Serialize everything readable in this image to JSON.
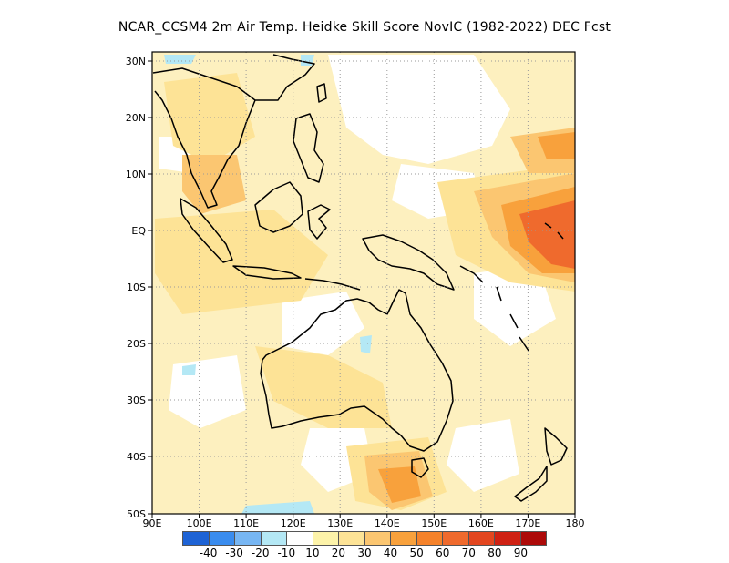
{
  "title": "NCAR_CCSM4  2m Air Temp. Heidke Skill Score NovIC (1982-2022) DEC Fcst",
  "map": {
    "lon_labels": [
      "90E",
      "100E",
      "110E",
      "120E",
      "130E",
      "140E",
      "150E",
      "160E",
      "170E",
      "180"
    ],
    "lat_labels": [
      "30N",
      "20N",
      "10N",
      "EQ",
      "10S",
      "20S",
      "30S",
      "40S",
      "50S"
    ],
    "lon_range": [
      90,
      180
    ],
    "lat_range": [
      -50,
      32
    ],
    "gridlines": "dotted",
    "field_colors": {
      "ocean_base": "#fdf0bf",
      "neutral": "#ffffff",
      "light": "#fde396",
      "moderate": "#fbc671",
      "strong": "#f8a13c",
      "very_strong": "#ef6a2d",
      "negative": "#b4e8f5"
    }
  },
  "colorbar": {
    "colors": [
      "#1e63d5",
      "#3a8cee",
      "#77b6f3",
      "#b4e8f5",
      "#ffffff",
      "#fdf3a9",
      "#fde396",
      "#fbc671",
      "#f8a13c",
      "#f5822a",
      "#ef6a2d",
      "#e3461f",
      "#cf2113",
      "#ad0a09"
    ],
    "labels": [
      "-40",
      "-30",
      "-20",
      "-10",
      "10",
      "20",
      "30",
      "40",
      "50",
      "60",
      "70",
      "80",
      "90"
    ]
  }
}
